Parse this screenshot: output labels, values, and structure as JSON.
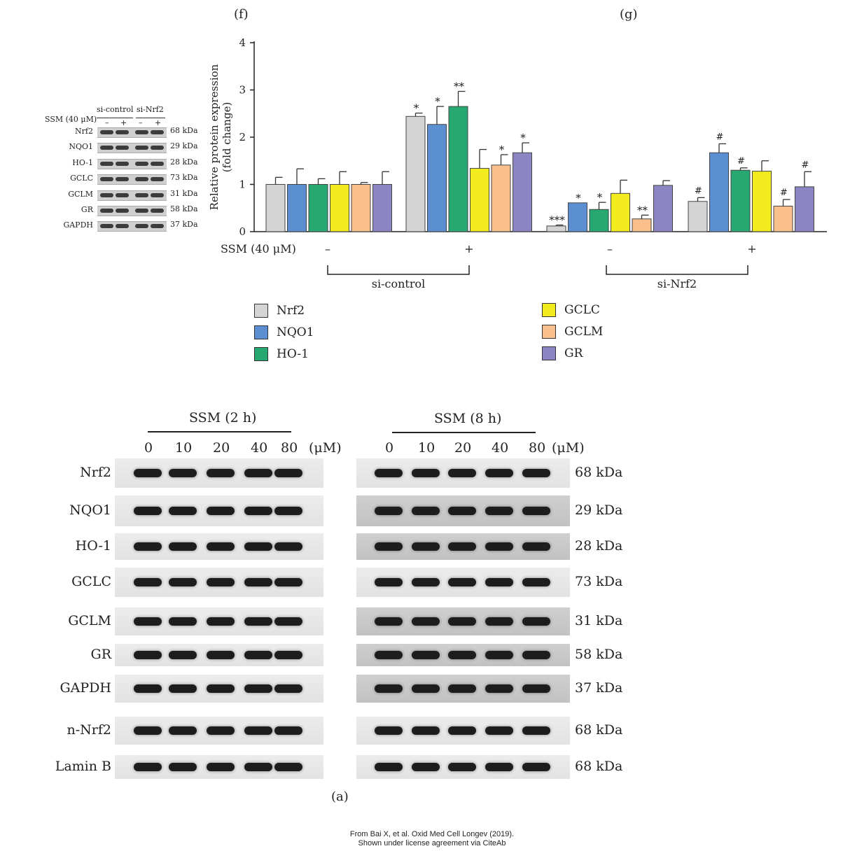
{
  "panels": {
    "f": "(f)",
    "g": "(g)",
    "a": "(a)"
  },
  "colors": {
    "Nrf2": "#d4d4d4",
    "NQO1": "#5b8fd1",
    "HO-1": "#27a870",
    "GCLC": "#f2ec1e",
    "GCLM": "#f9bf8c",
    "GR": "#8b86c3"
  },
  "small_blot": {
    "treatment_label": "SSM (40 μM)",
    "groups": [
      "si-control",
      "si-Nrf2"
    ],
    "signs": [
      "–",
      "+",
      "–",
      "+"
    ],
    "rows": [
      {
        "label": "Nrf2",
        "kda": "68 kDa"
      },
      {
        "label": "NQO1",
        "kda": "29 kDa"
      },
      {
        "label": "HO-1",
        "kda": "28 kDa"
      },
      {
        "label": "GCLC",
        "kda": "73 kDa"
      },
      {
        "label": "GCLM",
        "kda": "31 kDa"
      },
      {
        "label": "GR",
        "kda": "58 kDa"
      },
      {
        "label": "GAPDH",
        "kda": "37 kDa"
      }
    ]
  },
  "chart_data": {
    "type": "bar",
    "title": "",
    "ylabel": "Relative protein expression (fold change)",
    "ylabel_lines": [
      "Relative protein expression",
      "(fold change)"
    ],
    "ylim": [
      0,
      4
    ],
    "yticks": [
      0,
      1,
      2,
      3,
      4
    ],
    "x_row_label": "SSM (40 μM)",
    "groups": [
      {
        "ssm": "–",
        "condition": "si-control"
      },
      {
        "ssm": "+",
        "condition": "si-control"
      },
      {
        "ssm": "–",
        "condition": "si-Nrf2"
      },
      {
        "ssm": "+",
        "condition": "si-Nrf2"
      }
    ],
    "brackets": [
      "si-control",
      "si-Nrf2"
    ],
    "legend_position": "bottom",
    "series": [
      {
        "name": "Nrf2",
        "values": [
          1.0,
          2.44,
          0.12,
          0.64
        ],
        "errors": [
          0.15,
          0.07,
          0.02,
          0.08
        ],
        "marks": [
          "",
          "*",
          "***",
          "#"
        ]
      },
      {
        "name": "NQO1",
        "values": [
          1.0,
          2.27,
          0.61,
          1.67
        ],
        "errors": [
          0.33,
          0.38,
          0.0,
          0.19
        ],
        "marks": [
          "",
          "*",
          "*",
          "#"
        ]
      },
      {
        "name": "HO-1",
        "values": [
          1.0,
          2.65,
          0.47,
          1.3
        ],
        "errors": [
          0.12,
          0.32,
          0.15,
          0.05
        ],
        "marks": [
          "",
          "**",
          "*",
          "#"
        ]
      },
      {
        "name": "GCLC",
        "values": [
          1.0,
          1.34,
          0.81,
          1.28
        ],
        "errors": [
          0.27,
          0.4,
          0.28,
          0.22
        ],
        "marks": [
          "",
          "",
          "",
          ""
        ]
      },
      {
        "name": "GCLM",
        "values": [
          1.0,
          1.41,
          0.27,
          0.54
        ],
        "errors": [
          0.04,
          0.22,
          0.08,
          0.14
        ],
        "marks": [
          "",
          "*",
          "**",
          "#"
        ]
      },
      {
        "name": "GR",
        "values": [
          1.0,
          1.67,
          0.98,
          0.95
        ],
        "errors": [
          0.27,
          0.21,
          0.1,
          0.32
        ],
        "marks": [
          "",
          "*",
          "",
          "#"
        ]
      }
    ]
  },
  "lower_blot": {
    "left_title": "SSM (2 h)",
    "right_title": "SSM (8 h)",
    "concentrations": [
      "0",
      "10",
      "20",
      "40",
      "80"
    ],
    "unit": "(μM)",
    "rows": [
      {
        "label": "Nrf2",
        "kda": "68 kDa"
      },
      {
        "label": "NQO1",
        "kda": "29 kDa"
      },
      {
        "label": "HO-1",
        "kda": "28 kDa"
      },
      {
        "label": "GCLC",
        "kda": "73 kDa"
      },
      {
        "label": "GCLM",
        "kda": "31 kDa"
      },
      {
        "label": "GR",
        "kda": "58 kDa"
      },
      {
        "label": "GAPDH",
        "kda": "37 kDa"
      },
      {
        "label": "n-Nrf2",
        "kda": "68 kDa"
      },
      {
        "label": "Lamin B",
        "kda": "68 kDa"
      }
    ]
  },
  "credit": {
    "line1": "From Bai X, et al. Oxid Med Cell Longev (2019).",
    "line2": "Shown under license agreement via CiteAb"
  }
}
